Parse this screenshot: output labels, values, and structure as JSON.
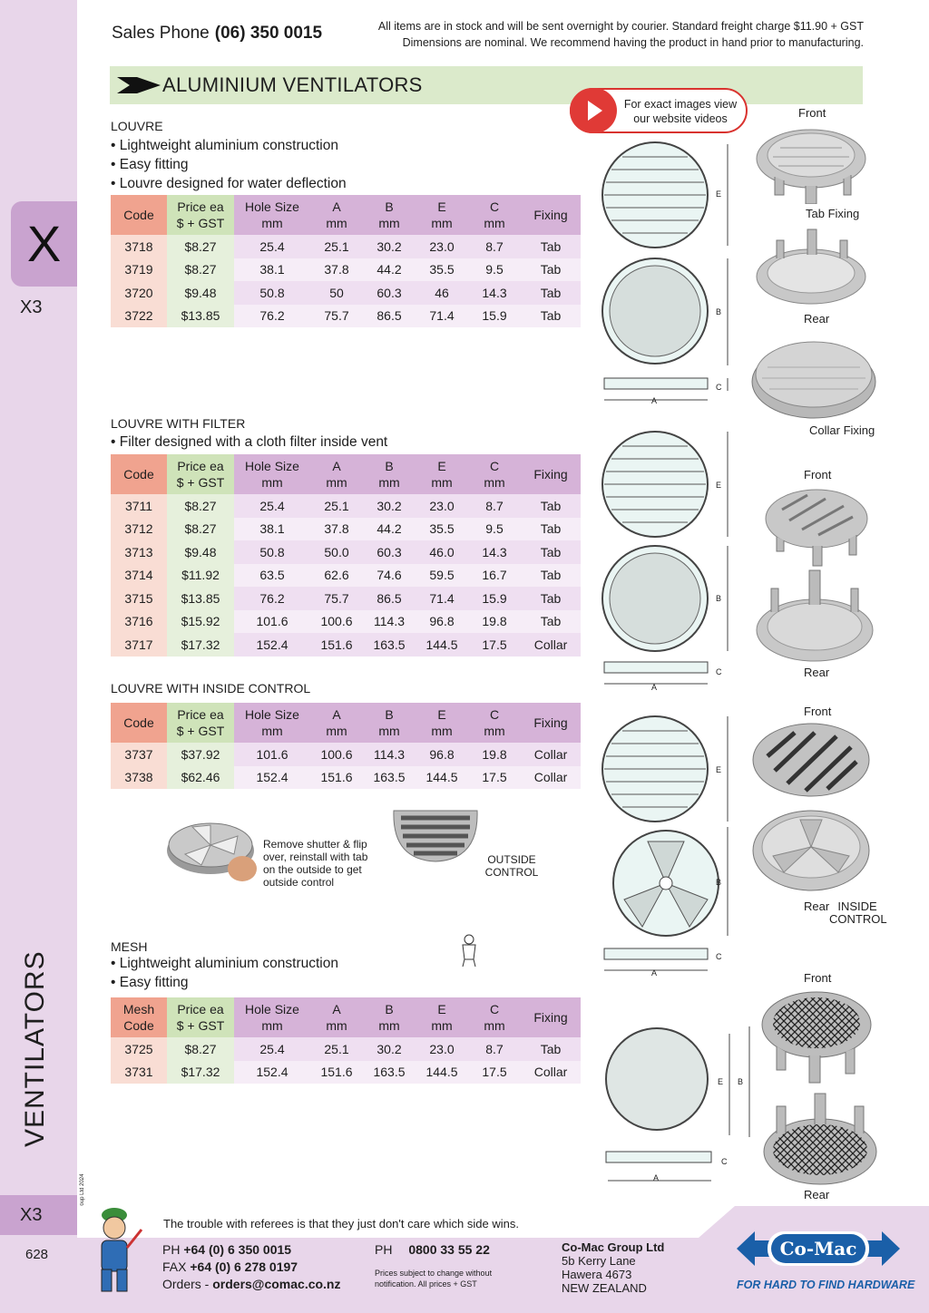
{
  "sidebar": {
    "tab_letter": "X",
    "section_code_top": "X3",
    "vertical_title": "VENTILATORS",
    "copyright": "© Co-Mac Group Ltd 2024",
    "section_code_bottom": "X3",
    "page_number": "628"
  },
  "header": {
    "sales_label": "Sales Phone",
    "sales_phone": "(06) 350 0015",
    "notice_line1": "All items are in stock and will be sent overnight by courier. Standard freight charge $11.90 + GST",
    "notice_line2": "Dimensions are nominal. We recommend having the product in hand prior to manufacturing."
  },
  "title": "ALUMINIUM VENTILATORS",
  "video_note": "For exact images view our website videos",
  "columns": [
    [
      "Code",
      ""
    ],
    [
      "Price ea",
      "$ + GST"
    ],
    [
      "Hole Size",
      "mm"
    ],
    [
      "A",
      "mm"
    ],
    [
      "B",
      "mm"
    ],
    [
      "E",
      "mm"
    ],
    [
      "C",
      "mm"
    ],
    [
      "Fixing",
      ""
    ]
  ],
  "mesh_code_label": [
    "Mesh",
    "Code"
  ],
  "sections": {
    "louvre": {
      "heading": "LOUVRE",
      "bullets": [
        "• Lightweight aluminium construction",
        "• Easy fitting",
        "• Louvre designed for water deflection"
      ],
      "rows": [
        [
          "3718",
          "$8.27",
          "25.4",
          "25.1",
          "30.2",
          "23.0",
          "8.7",
          "Tab"
        ],
        [
          "3719",
          "$8.27",
          "38.1",
          "37.8",
          "44.2",
          "35.5",
          "9.5",
          "Tab"
        ],
        [
          "3720",
          "$9.48",
          "50.8",
          "50",
          "60.3",
          "46",
          "14.3",
          "Tab"
        ],
        [
          "3722",
          "$13.85",
          "76.2",
          "75.7",
          "86.5",
          "71.4",
          "15.9",
          "Tab"
        ]
      ]
    },
    "filter": {
      "heading": "LOUVRE WITH FILTER",
      "bullets": [
        "• Filter designed with a cloth filter inside vent"
      ],
      "rows": [
        [
          "3711",
          "$8.27",
          "25.4",
          "25.1",
          "30.2",
          "23.0",
          "8.7",
          "Tab"
        ],
        [
          "3712",
          "$8.27",
          "38.1",
          "37.8",
          "44.2",
          "35.5",
          "9.5",
          "Tab"
        ],
        [
          "3713",
          "$9.48",
          "50.8",
          "50.0",
          "60.3",
          "46.0",
          "14.3",
          "Tab"
        ],
        [
          "3714",
          "$11.92",
          "63.5",
          "62.6",
          "74.6",
          "59.5",
          "16.7",
          "Tab"
        ],
        [
          "3715",
          "$13.85",
          "76.2",
          "75.7",
          "86.5",
          "71.4",
          "15.9",
          "Tab"
        ],
        [
          "3716",
          "$15.92",
          "101.6",
          "100.6",
          "114.3",
          "96.8",
          "19.8",
          "Tab"
        ],
        [
          "3717",
          "$17.32",
          "152.4",
          "151.6",
          "163.5",
          "144.5",
          "17.5",
          "Collar"
        ]
      ]
    },
    "control": {
      "heading": "LOUVRE WITH INSIDE CONTROL",
      "rows": [
        [
          "3737",
          "$37.92",
          "101.6",
          "100.6",
          "114.3",
          "96.8",
          "19.8",
          "Collar"
        ],
        [
          "3738",
          "$62.46",
          "152.4",
          "151.6",
          "163.5",
          "144.5",
          "17.5",
          "Collar"
        ]
      ],
      "shutter_caption": "Remove shutter & flip over, reinstall with tab on the outside to get outside control",
      "outside_label": "OUTSIDE CONTROL"
    },
    "mesh": {
      "heading": "MESH",
      "bullets": [
        "• Lightweight aluminium construction",
        "• Easy fitting"
      ],
      "rows": [
        [
          "3725",
          "$8.27",
          "25.4",
          "25.1",
          "30.2",
          "23.0",
          "8.7",
          "Tab"
        ],
        [
          "3731",
          "$17.32",
          "152.4",
          "151.6",
          "163.5",
          "144.5",
          "17.5",
          "Collar"
        ]
      ]
    }
  },
  "photo_labels": {
    "front": "Front",
    "tab_fixing": "Tab Fixing",
    "rear": "Rear",
    "collar_fixing": "Collar Fixing",
    "inside_control": "INSIDE CONTROL"
  },
  "diagram_labels": {
    "a": "A",
    "b": "B",
    "c": "C",
    "e": "E"
  },
  "footer": {
    "joke": "The trouble with referees is that they just don't care which side wins.",
    "ph_label": "PH",
    "ph": "+64 (0) 6 350 0015",
    "fax_label": "FAX",
    "fax": "+64 (0) 6 278 0197",
    "orders_label": "Orders -",
    "orders": "orders@comac.co.nz",
    "ph2_label": "PH",
    "ph2": "0800 33 55 22",
    "note": "Prices subject to change without notification. All prices + GST",
    "company": "Co-Mac Group Ltd",
    "addr1": "5b Kerry Lane",
    "addr2": "Hawera 4673",
    "addr3": "NEW ZEALAND",
    "logo_text": "Co-Mac",
    "slogan": "FOR HARD TO FIND HARDWARE"
  },
  "colors": {
    "sidebar": "#e8d6ea",
    "tab": "#c9a3cf",
    "band": "#dbeacb",
    "code_header": "#f0a38f",
    "price_header": "#cfe3b9",
    "dim_header": "#d6b3d8",
    "brand_blue": "#1a5fa8"
  }
}
